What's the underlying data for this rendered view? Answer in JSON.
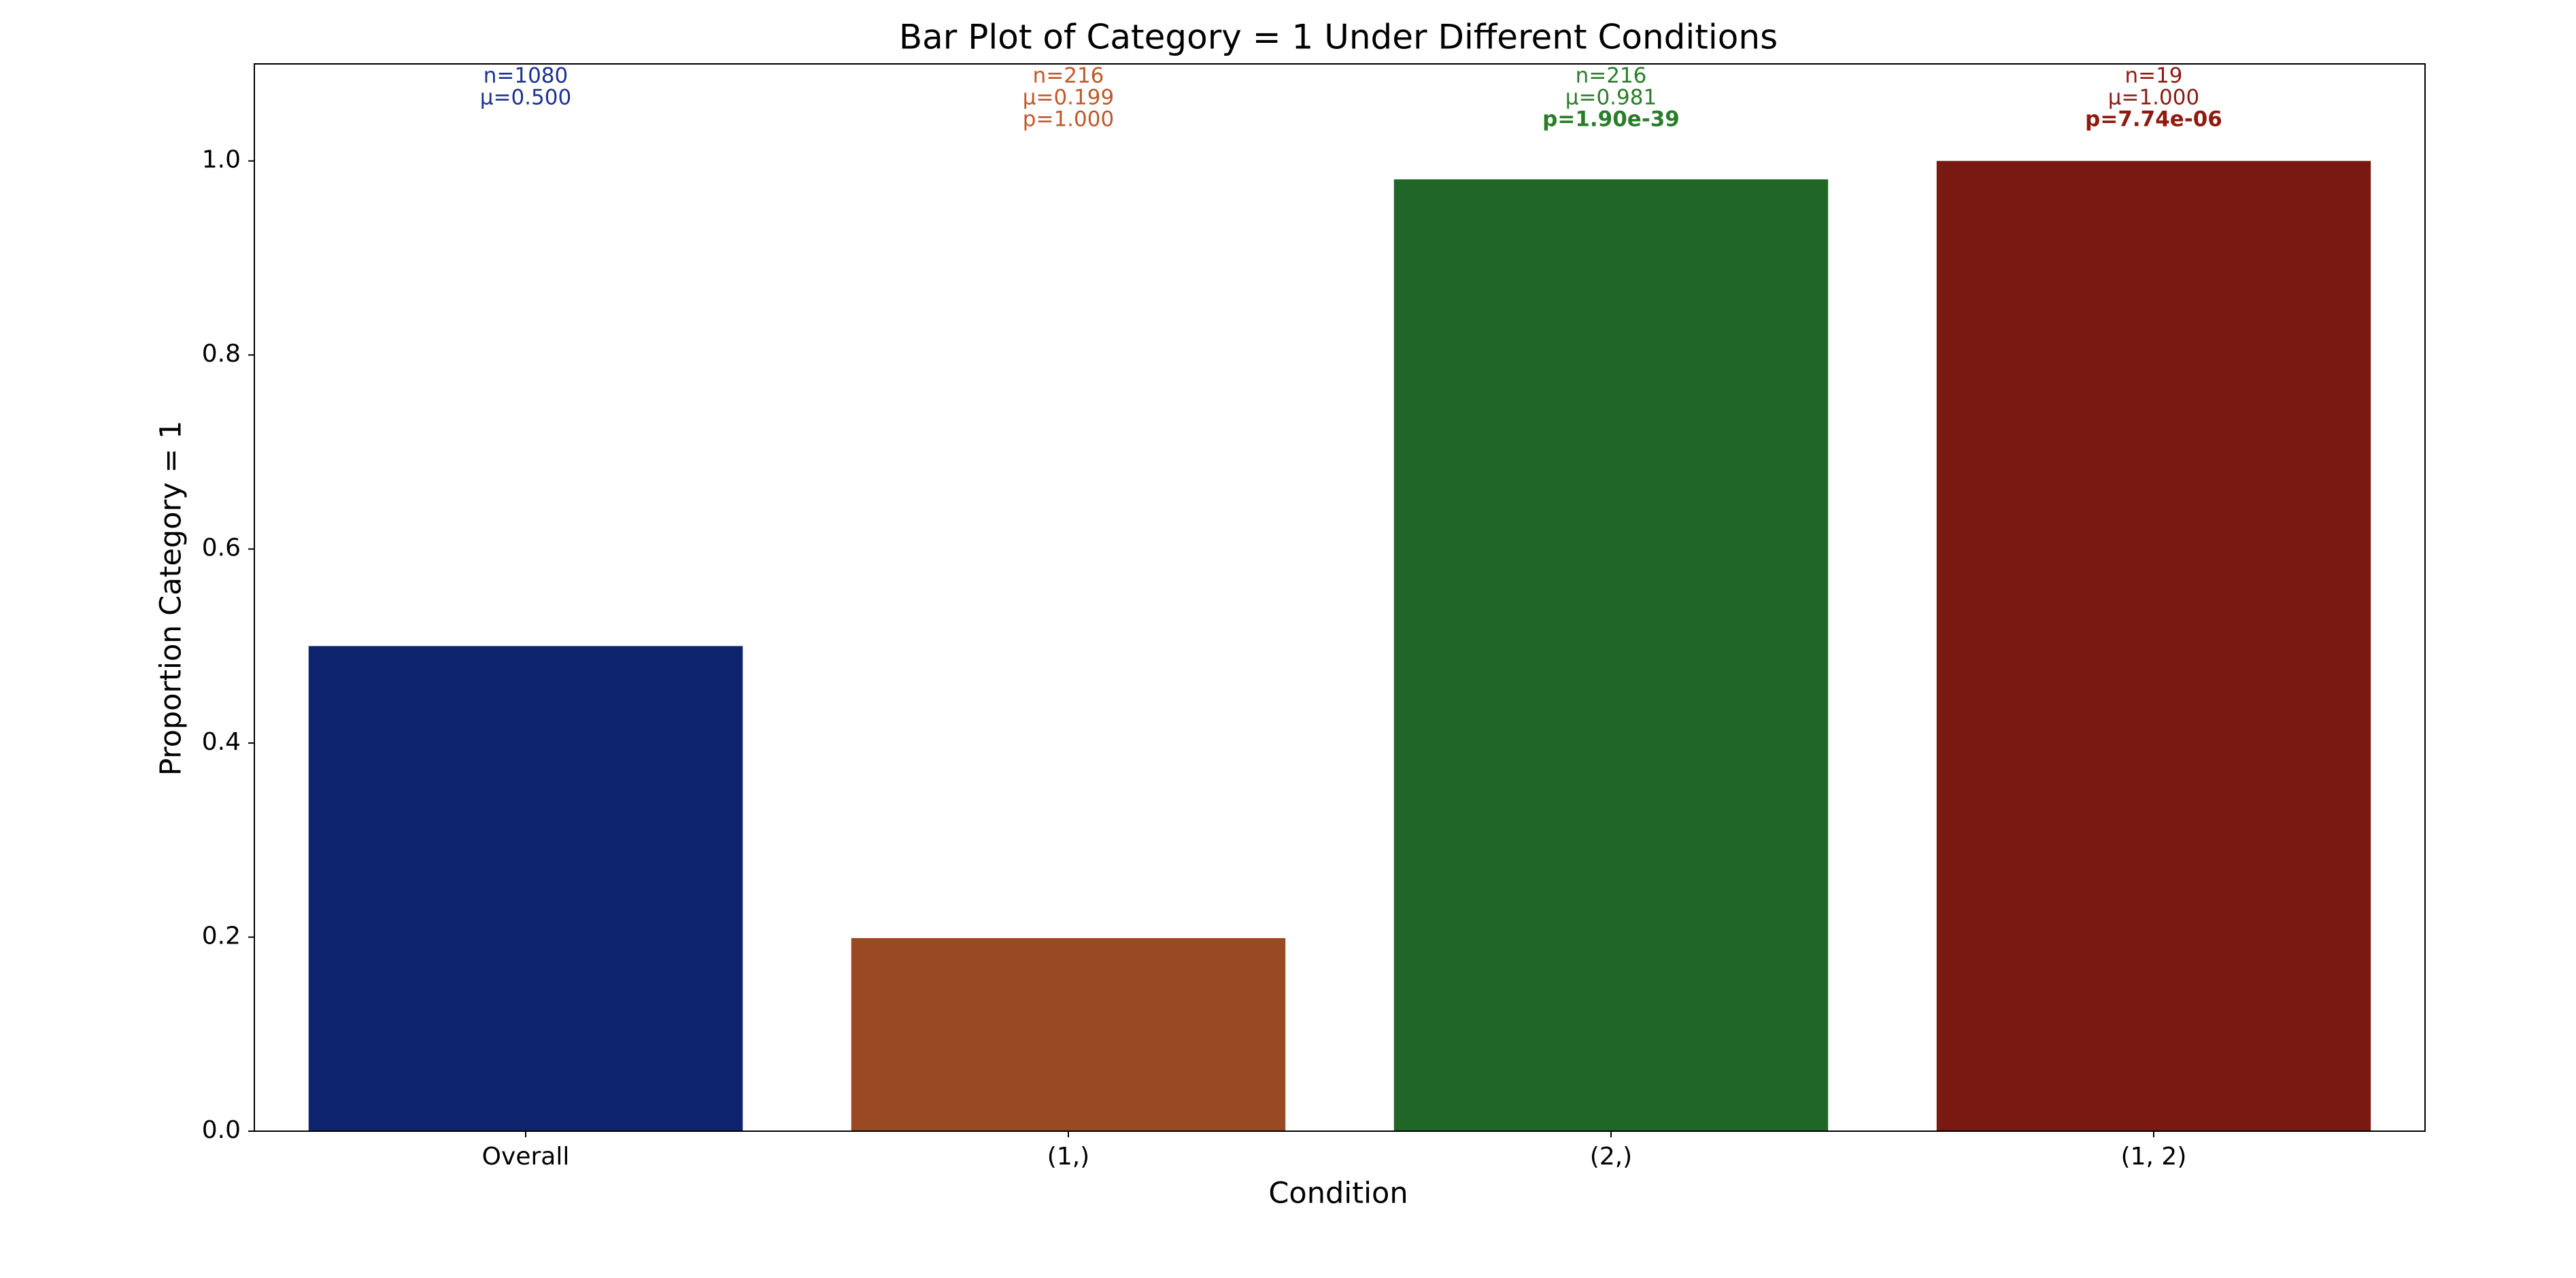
{
  "chart_data": {
    "type": "bar",
    "title": "Bar Plot of Category = 1 Under Different Conditions",
    "x_label": "Condition",
    "y_label": "Proportion Category = 1",
    "categories": [
      "Overall",
      "(1,)",
      "(2,)",
      "(1, 2)"
    ],
    "values": [
      0.5,
      0.199,
      0.981,
      1.0
    ],
    "value_labels": [
      "μ=0.500",
      "μ=0.199",
      "μ=0.981",
      "μ=1.000"
    ],
    "n_labels": [
      "n=1080",
      "n=216",
      "n=216",
      "n=19"
    ],
    "p_labels": [
      null,
      "p=1.000",
      "p=1.90e-39",
      "p=7.74e-06"
    ],
    "p_bold": [
      false,
      false,
      true,
      true
    ],
    "colors": [
      "#0f246e",
      "#9a4a22",
      "#1f6628",
      "#7a1812"
    ],
    "label_colors": [
      "#1c3290",
      "#c0582c",
      "#2a7d2a",
      "#8e1a10"
    ],
    "ylim": [
      0,
      1.1
    ],
    "yticks": [
      {
        "value": 0,
        "label": "0.0"
      },
      0.2,
      0.4,
      0.6,
      0.8,
      {
        "value": 1,
        "label": "1.0"
      }
    ],
    "grid": false
  }
}
